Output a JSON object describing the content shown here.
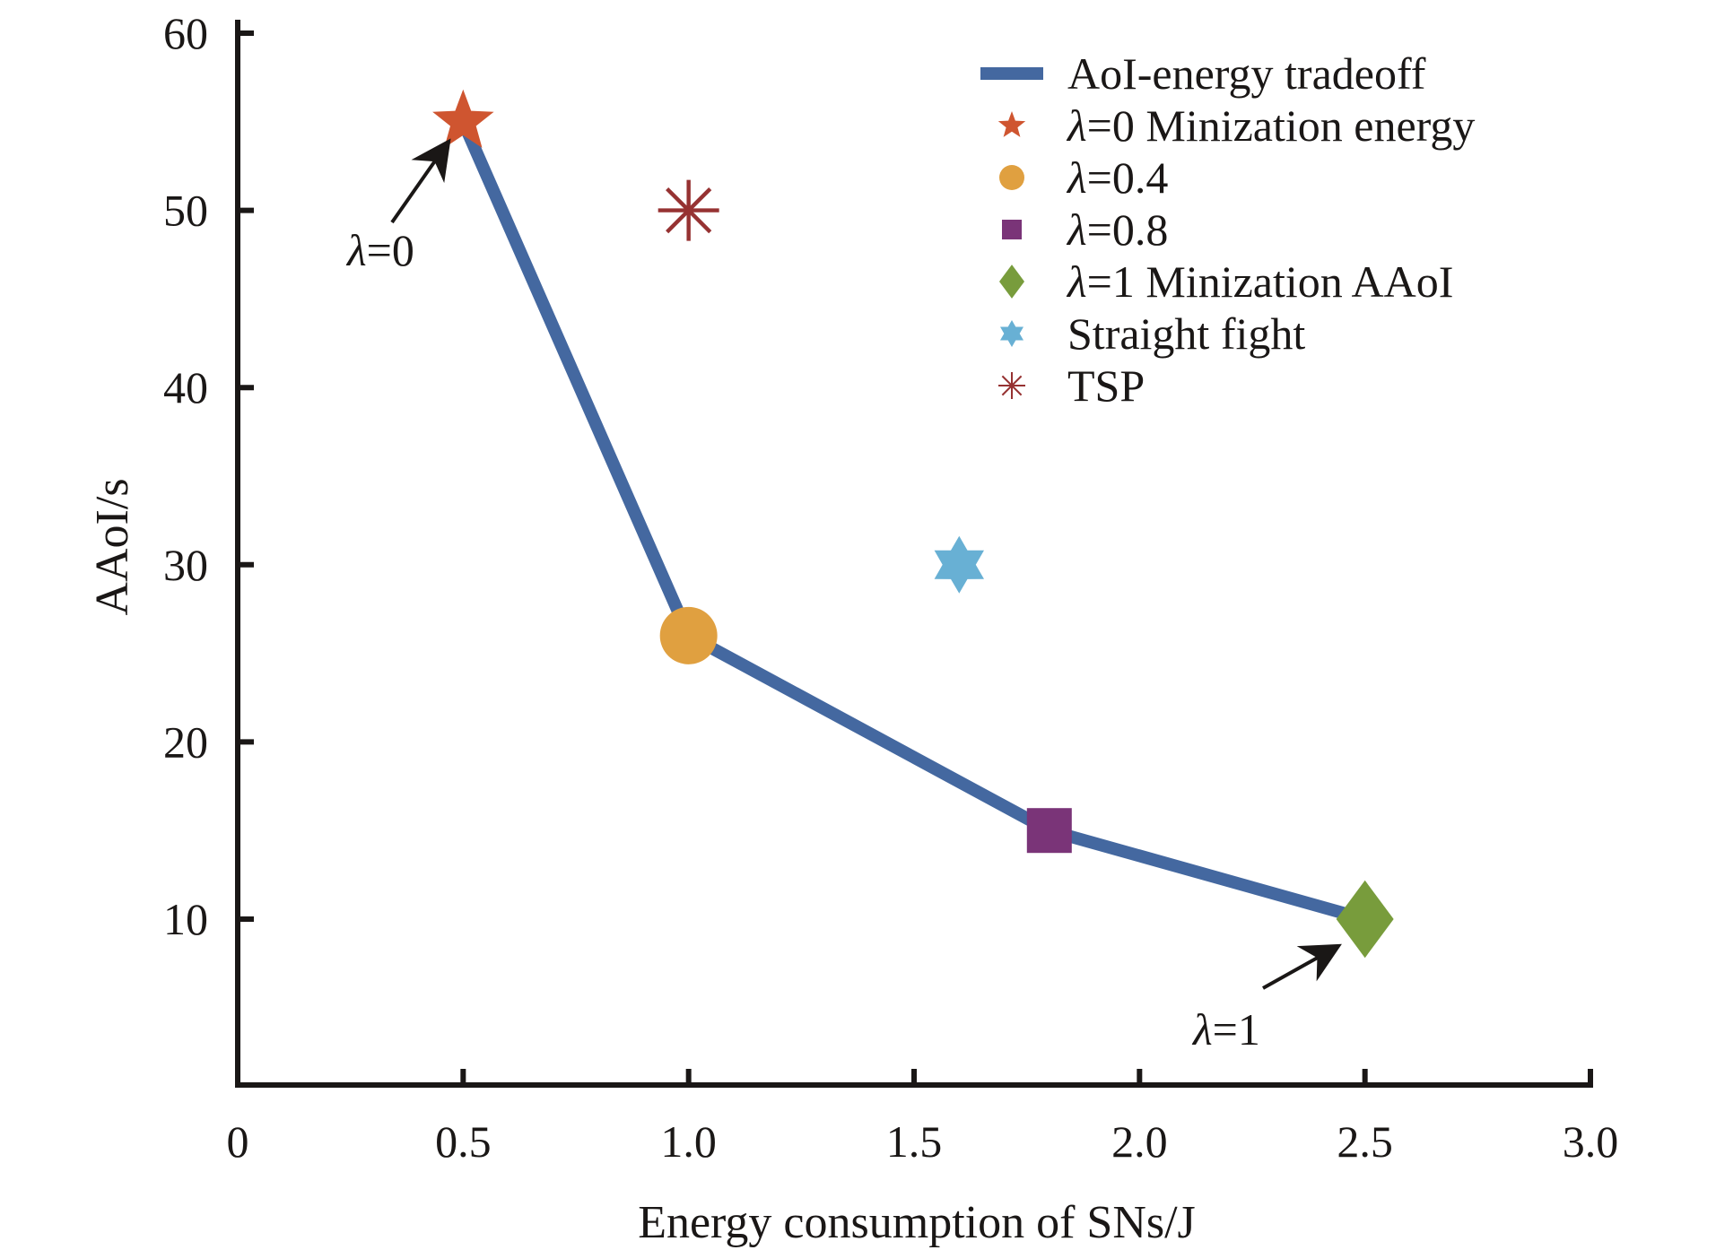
{
  "chart_data": {
    "type": "line",
    "title": "",
    "xlabel": "Energy consumption of SNs/J",
    "ylabel": "AAoI/s",
    "xlim": [
      0,
      3.0
    ],
    "ylim": [
      0.7,
      61
    ],
    "xticks": [
      0,
      0.5,
      1.0,
      1.5,
      2.0,
      2.5,
      3.0
    ],
    "xtick_labels": [
      "0",
      "0.5",
      "1.0",
      "1.5",
      "2.0",
      "2.5",
      "3.0"
    ],
    "yticks": [
      10,
      20,
      30,
      40,
      50,
      60
    ],
    "ytick_labels": [
      "10",
      "20",
      "30",
      "40",
      "50",
      "60"
    ],
    "grid": false,
    "legend_position": "top-right",
    "series": [
      {
        "name": "AoI-energy tradeoff",
        "kind": "line",
        "color": "#4468a0",
        "x": [
          0.5,
          1.0,
          1.8,
          2.5
        ],
        "y": [
          55,
          26,
          15,
          10
        ]
      },
      {
        "name": "λ=0 Minization energy",
        "legend_prefix": "λ",
        "legend_suffix": "=0 Minization energy",
        "kind": "marker",
        "marker": "star5",
        "color": "#cf5530",
        "x": [
          0.5
        ],
        "y": [
          55
        ]
      },
      {
        "name": "λ=0.4",
        "legend_prefix": "λ",
        "legend_suffix": "=0.4",
        "kind": "marker",
        "marker": "circle",
        "color": "#e0a040",
        "x": [
          1.0
        ],
        "y": [
          26
        ]
      },
      {
        "name": "λ=0.8",
        "legend_prefix": "λ",
        "legend_suffix": "=0.8",
        "kind": "marker",
        "marker": "square",
        "color": "#7a3478",
        "x": [
          1.8
        ],
        "y": [
          15
        ]
      },
      {
        "name": "λ=1 Minization AAoI",
        "legend_prefix": "λ",
        "legend_suffix": "=1 Minization AAoI",
        "kind": "marker",
        "marker": "diamond",
        "color": "#789c3c",
        "x": [
          2.5
        ],
        "y": [
          10
        ]
      },
      {
        "name": "Straight fight",
        "legend_prefix": "",
        "legend_suffix": "Straight fight",
        "kind": "marker",
        "marker": "hexagram",
        "color": "#68b0d4",
        "x": [
          1.6
        ],
        "y": [
          30
        ]
      },
      {
        "name": "TSP",
        "legend_prefix": "",
        "legend_suffix": "TSP",
        "kind": "marker",
        "marker": "asterisk",
        "color": "#963232",
        "x": [
          1.0
        ],
        "y": [
          50
        ]
      }
    ],
    "annotations": [
      {
        "prefix": "λ",
        "text": "=0",
        "target_x": 0.5,
        "target_y": 55,
        "position": "below-left"
      },
      {
        "prefix": "λ",
        "text": "=1",
        "target_x": 2.5,
        "target_y": 10,
        "position": "below-left"
      }
    ]
  }
}
